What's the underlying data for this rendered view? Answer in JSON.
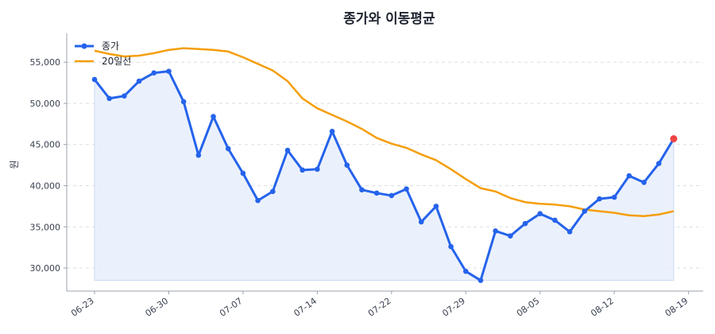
{
  "chart_data": {
    "type": "line",
    "title": "종가와 이동평균",
    "xlabel": "",
    "ylabel": "원",
    "ylim": [
      27200,
      58500
    ],
    "yticks": [
      30000,
      35000,
      40000,
      45000,
      50000,
      55000
    ],
    "ytick_labels": [
      "30,000",
      "35,000",
      "40,000",
      "45,000",
      "50,000",
      "55,000"
    ],
    "x_tick_labels": [
      "06-23",
      "06-30",
      "07-07",
      "07-14",
      "07-22",
      "07-29",
      "08-05",
      "08-12",
      "08-19"
    ],
    "x_tick_indices": [
      0,
      5,
      10,
      15,
      20,
      25,
      30,
      35,
      40
    ],
    "grid": true,
    "legend": "top-left",
    "series": [
      {
        "name": "종가",
        "color": "#2563eb",
        "fill": "#e8eefc",
        "last_point_color": "#ef4444",
        "values": [
          52900,
          50600,
          50900,
          52700,
          53700,
          53900,
          50200,
          43700,
          48400,
          44500,
          41500,
          38200,
          39300,
          44300,
          41900,
          42000,
          46600,
          42500,
          39500,
          39100,
          38800,
          39600,
          35600,
          37500,
          32600,
          29600,
          28500,
          34500,
          33900,
          35400,
          36600,
          35800,
          34400,
          36900,
          38400,
          38600,
          41200,
          40400,
          42700,
          45700
        ]
      },
      {
        "name": "20일선",
        "color": "#f59e0b",
        "values": [
          56400,
          56000,
          55700,
          55800,
          56100,
          56500,
          56700,
          56600,
          56500,
          56300,
          55600,
          54800,
          54000,
          52700,
          50600,
          49400,
          48600,
          47800,
          46900,
          45800,
          45100,
          44600,
          43800,
          43100,
          42000,
          40800,
          39700,
          39300,
          38500,
          38000,
          37800,
          37700,
          37500,
          37100,
          36900,
          36700,
          36400,
          36300,
          36500,
          36900
        ]
      }
    ]
  }
}
